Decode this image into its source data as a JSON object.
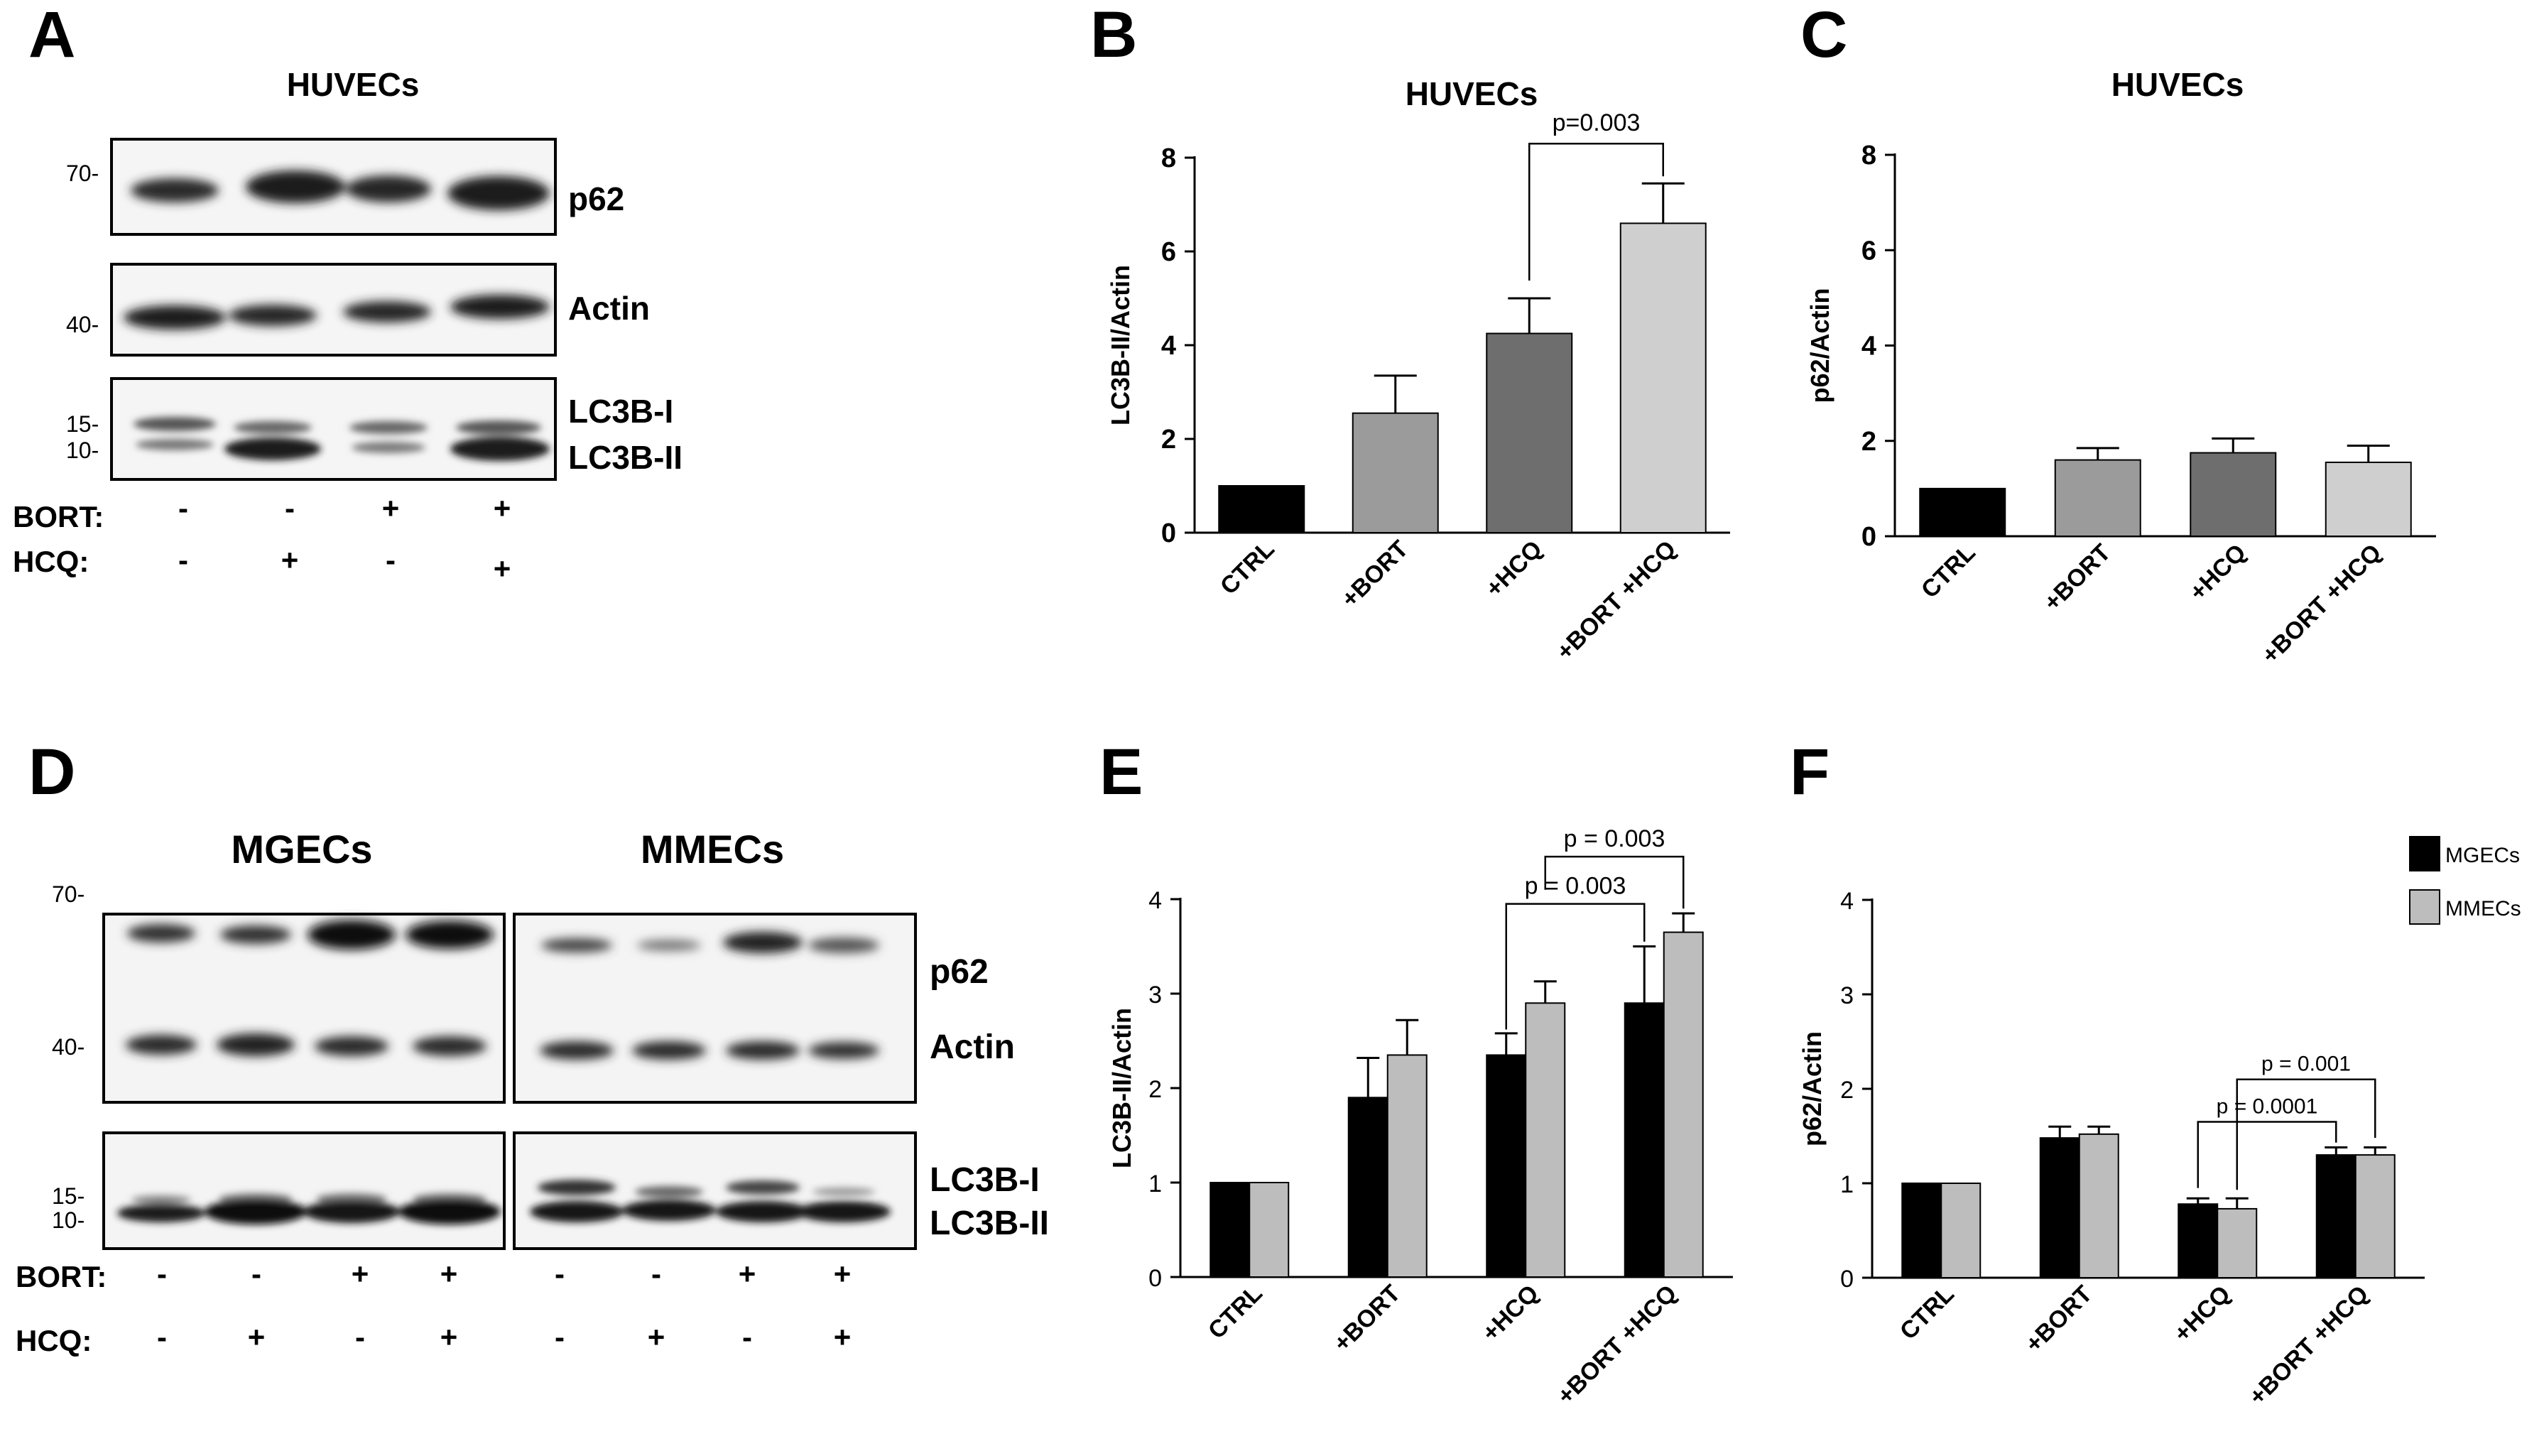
{
  "panels": {
    "A": {
      "letter": "A",
      "title": "HUVECs",
      "bands": {
        "p62": "p62",
        "actin": "Actin",
        "lc3b_i": "LC3B-I",
        "lc3b_ii": "LC3B-II"
      },
      "mw": {
        "m70": "70-",
        "m40": "40-",
        "m15": "15-",
        "m10": "10-"
      },
      "treatments": {
        "bort_label": "BORT:",
        "hcq_label": "HCQ:",
        "bort": [
          "-",
          "-",
          "+",
          "+"
        ],
        "hcq": [
          "-",
          "+",
          "-",
          "+"
        ]
      }
    },
    "B": {
      "letter": "B"
    },
    "C": {
      "letter": "C"
    },
    "D": {
      "letter": "D",
      "title_left": "MGECs",
      "title_right": "MMECs",
      "bands": {
        "p62": "p62",
        "actin": "Actin",
        "lc3b_i": "LC3B-I",
        "lc3b_ii": "LC3B-II"
      },
      "mw": {
        "m70": "70-",
        "m40": "40-",
        "m15": "15-",
        "m10": "10-"
      },
      "treatments": {
        "bort_label": "BORT:",
        "hcq_label": "HCQ:",
        "bort": [
          "-",
          "-",
          "+",
          "+",
          "-",
          "-",
          "+",
          "+"
        ],
        "hcq": [
          "-",
          "+",
          "-",
          "+",
          "-",
          "+",
          "-",
          "+"
        ]
      }
    },
    "E": {
      "letter": "E"
    },
    "F": {
      "letter": "F"
    }
  },
  "colors": {
    "ctrl": "#000000",
    "bort": "#9b9b9b",
    "hcq": "#6e6e6e",
    "bort_hcq": "#cfcfcf",
    "mgecs": "#000000",
    "mmecs": "#bdbdbd"
  },
  "chart_data": [
    {
      "id": "B",
      "type": "bar",
      "title": "HUVECs",
      "xlabel": "",
      "ylabel": "LC3B-II/Actin",
      "categories": [
        "CTRL",
        "+BORT",
        "+HCQ",
        "+BORT +HCQ"
      ],
      "values": [
        1.0,
        2.55,
        4.25,
        6.6
      ],
      "errors": [
        0,
        0.8,
        0.75,
        0.85
      ],
      "ylim": [
        0,
        8
      ],
      "yticks": [
        0,
        2,
        4,
        6,
        8
      ],
      "grid": false,
      "annotations": [
        {
          "text": "p=0.003",
          "from": 2,
          "to": 3
        }
      ]
    },
    {
      "id": "C",
      "type": "bar",
      "title": "HUVECs",
      "xlabel": "",
      "ylabel": "p62/Actin",
      "categories": [
        "CTRL",
        "+BORT",
        "+HCQ",
        "+BORT +HCQ"
      ],
      "values": [
        1.0,
        1.6,
        1.75,
        1.55
      ],
      "errors": [
        0,
        0.25,
        0.3,
        0.35
      ],
      "ylim": [
        0,
        8
      ],
      "yticks": [
        0,
        2,
        4,
        6,
        8
      ],
      "grid": false,
      "annotations": []
    },
    {
      "id": "E",
      "type": "bar",
      "title": "",
      "xlabel": "",
      "ylabel": "LC3B-II/Actin",
      "categories": [
        "CTRL",
        "+BORT",
        "+HCQ",
        "+BORT +HCQ"
      ],
      "series": [
        {
          "name": "MGECs",
          "values": [
            1.0,
            1.9,
            2.35,
            2.9
          ],
          "errors": [
            0,
            0.42,
            0.23,
            0.6
          ]
        },
        {
          "name": "MMECs",
          "values": [
            1.0,
            2.35,
            2.9,
            3.65
          ],
          "errors": [
            0,
            0.37,
            0.23,
            0.2
          ]
        }
      ],
      "ylim": [
        0,
        4
      ],
      "yticks": [
        0,
        1,
        2,
        3,
        4
      ],
      "grid": false,
      "legend": "top-right",
      "annotations": [
        {
          "text": "p = 0.003",
          "from": 2,
          "to": 3,
          "level": 1
        },
        {
          "text": "p = 0.003",
          "from": 2,
          "to": 3,
          "level": 2
        }
      ]
    },
    {
      "id": "F",
      "type": "bar",
      "title": "",
      "xlabel": "",
      "ylabel": "p62/Actin",
      "categories": [
        "CTRL",
        "+BORT",
        "+HCQ",
        "+BORT +HCQ"
      ],
      "series": [
        {
          "name": "MGECs",
          "values": [
            1.0,
            1.48,
            0.78,
            1.3
          ],
          "errors": [
            0,
            0.12,
            0.06,
            0.08
          ]
        },
        {
          "name": "MMECs",
          "values": [
            1.0,
            1.52,
            0.73,
            1.3
          ],
          "errors": [
            0,
            0.08,
            0.11,
            0.08
          ]
        }
      ],
      "ylim": [
        0,
        4
      ],
      "yticks": [
        0,
        1,
        2,
        3,
        4
      ],
      "grid": false,
      "legend": "top-right",
      "legend_labels": [
        "MGECs",
        "MMECs"
      ],
      "annotations": [
        {
          "text": "p = 0.0001",
          "from": 2,
          "to": 3,
          "level": 1
        },
        {
          "text": "p = 0.001",
          "from": 2,
          "to": 3,
          "level": 2
        }
      ]
    }
  ]
}
